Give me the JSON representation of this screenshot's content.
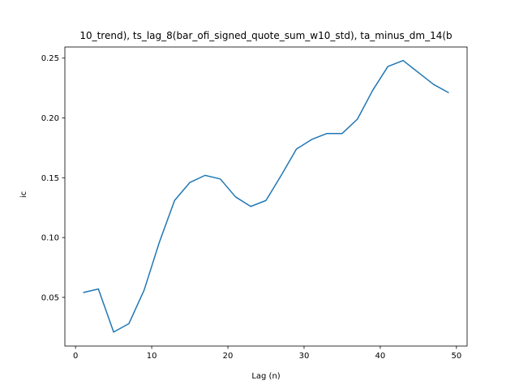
{
  "chart_data": {
    "type": "line",
    "title": "10_trend), ts_lag_8(bar_ofi_signed_quote_sum_w10_std), ta_minus_dm_14(b",
    "xlabel": "Lag (n)",
    "ylabel": "ic",
    "xlim": [
      -1.4,
      51.4
    ],
    "ylim": [
      0.0093,
      0.2593
    ],
    "xticks": [
      0,
      10,
      20,
      30,
      40,
      50
    ],
    "xtick_labels": [
      "0",
      "10",
      "20",
      "30",
      "40",
      "50"
    ],
    "yticks": [
      0.05,
      0.1,
      0.15,
      0.2,
      0.25
    ],
    "ytick_labels": [
      "0.05",
      "0.10",
      "0.15",
      "0.20",
      "0.25"
    ],
    "grid": false,
    "series": [
      {
        "color": "#1f77b4",
        "x": [
          1,
          3,
          5,
          7,
          9,
          11,
          13,
          15,
          17,
          19,
          21,
          23,
          25,
          27,
          29,
          31,
          33,
          35,
          37,
          39,
          41,
          43,
          45,
          47,
          49
        ],
        "y": [
          0.054,
          0.057,
          0.021,
          0.028,
          0.056,
          0.096,
          0.131,
          0.146,
          0.152,
          0.149,
          0.134,
          0.126,
          0.131,
          0.152,
          0.174,
          0.182,
          0.187,
          0.187,
          0.199,
          0.223,
          0.243,
          0.248,
          0.238,
          0.228,
          0.221
        ]
      }
    ]
  }
}
